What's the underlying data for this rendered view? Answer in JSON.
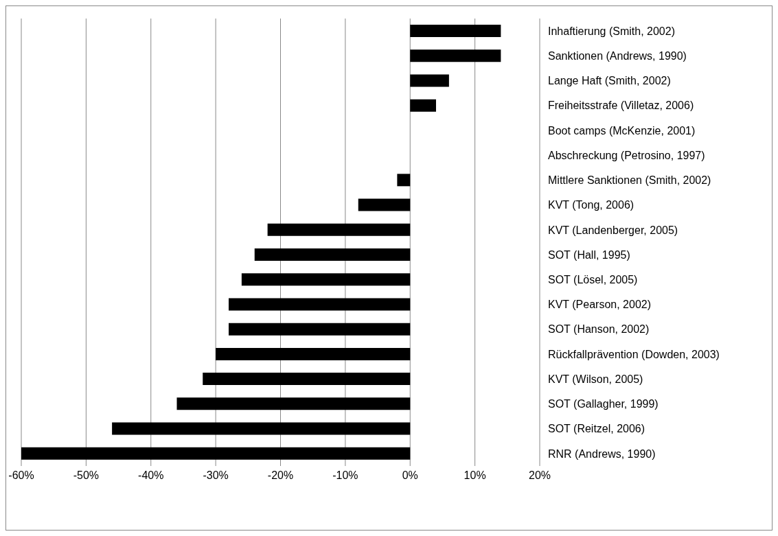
{
  "chart_data": {
    "type": "bar",
    "orientation": "horizontal",
    "categories": [
      "Inhaftierung (Smith, 2002)",
      "Sanktionen (Andrews, 1990)",
      "Lange Haft (Smith, 2002)",
      "Freiheitsstrafe (Villetaz, 2006)",
      "Boot camps (McKenzie, 2001)",
      "Abschreckung (Petrosino, 1997)",
      "Mittlere Sanktionen (Smith, 2002)",
      "KVT (Tong, 2006)",
      "KVT (Landenberger, 2005)",
      "SOT (Hall, 1995)",
      "SOT (Lösel, 2005)",
      "KVT (Pearson, 2002)",
      "SOT (Hanson, 2002)",
      "Rückfallprävention (Dowden, 2003)",
      "KVT (Wilson, 2005)",
      "SOT (Gallagher, 1999)",
      "SOT (Reitzel, 2006)",
      "RNR (Andrews, 1990)"
    ],
    "values": [
      14,
      14,
      6,
      4,
      0,
      0,
      -2,
      -8,
      -22,
      -24,
      -26,
      -28,
      -28,
      -30,
      -32,
      -36,
      -46,
      -60
    ],
    "color": "#000000",
    "xlim": [
      -60,
      20
    ],
    "xticks": [
      {
        "value": -60,
        "label": "-60%"
      },
      {
        "value": -50,
        "label": "-50%"
      },
      {
        "value": -40,
        "label": "-40%"
      },
      {
        "value": -30,
        "label": "-30%"
      },
      {
        "value": -20,
        "label": "-20%"
      },
      {
        "value": -10,
        "label": "-10%"
      },
      {
        "value": 0,
        "label": "0%"
      },
      {
        "value": 10,
        "label": "10%"
      },
      {
        "value": 20,
        "label": "20%"
      }
    ],
    "grid": "x"
  }
}
